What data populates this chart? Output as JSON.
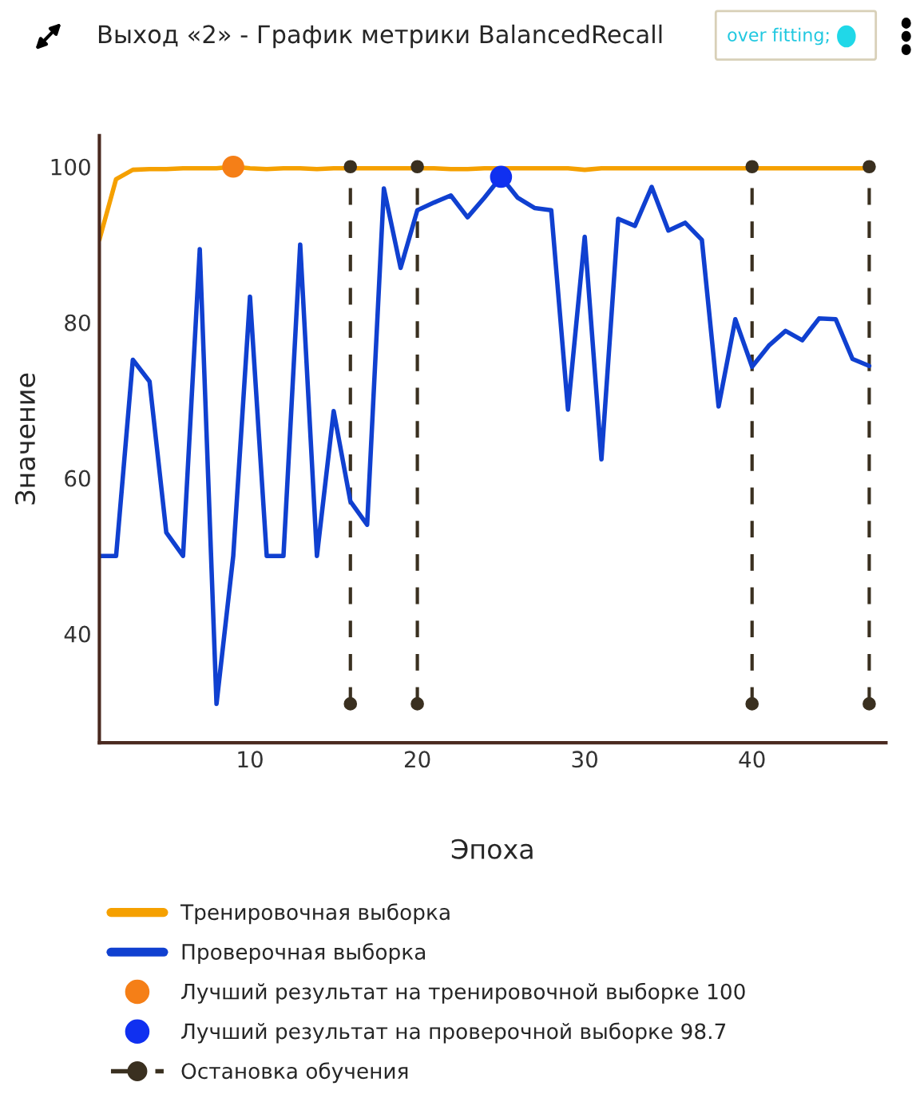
{
  "chart_data": {
    "type": "line",
    "title": "Выход «2» - График метрики BalancedRecall",
    "xlabel": "Эпоха",
    "ylabel": "Значение",
    "annotations": [
      "over fitting;"
    ],
    "xlim": [
      1,
      48
    ],
    "ylim": [
      26,
      104
    ],
    "xticks": [
      10,
      20,
      30,
      40
    ],
    "yticks": [
      40,
      60,
      80,
      100
    ],
    "grid": false,
    "legend": "bottom",
    "series": [
      {
        "name": "Тренировочная выборка",
        "color": "#f5a000",
        "x": [
          1,
          2,
          3,
          4,
          5,
          6,
          7,
          8,
          9,
          10,
          11,
          12,
          13,
          14,
          15,
          16,
          17,
          18,
          19,
          20,
          21,
          22,
          23,
          24,
          25,
          26,
          27,
          28,
          29,
          30,
          31,
          32,
          33,
          34,
          35,
          36,
          37,
          38,
          39,
          40,
          41,
          42,
          43,
          44,
          45,
          46,
          47
        ],
        "values": [
          90.6,
          98.4,
          99.6,
          99.7,
          99.7,
          99.8,
          99.8,
          99.8,
          100,
          99.8,
          99.7,
          99.8,
          99.8,
          99.7,
          99.8,
          99.8,
          99.8,
          99.8,
          99.8,
          99.8,
          99.8,
          99.7,
          99.7,
          99.8,
          99.8,
          99.8,
          99.8,
          99.8,
          99.8,
          99.6,
          99.8,
          99.8,
          99.8,
          99.8,
          99.8,
          99.8,
          99.8,
          99.8,
          99.8,
          99.8,
          99.8,
          99.8,
          99.8,
          99.8,
          99.8,
          99.8,
          99.8
        ]
      },
      {
        "name": "Проверочная выборка",
        "color": "#1040d0",
        "x": [
          1,
          2,
          3,
          4,
          5,
          6,
          7,
          8,
          9,
          10,
          11,
          12,
          13,
          14,
          15,
          16,
          17,
          18,
          19,
          20,
          21,
          22,
          23,
          24,
          25,
          26,
          27,
          28,
          29,
          30,
          31,
          32,
          33,
          34,
          35,
          36,
          37,
          38,
          39,
          40,
          41,
          42,
          43,
          44,
          45,
          46,
          47
        ],
        "values": [
          50,
          50,
          75.2,
          72.4,
          53,
          50,
          89.4,
          31,
          50,
          83.3,
          50,
          50,
          90,
          50,
          68.6,
          57,
          54,
          97.2,
          87,
          94.4,
          95.4,
          96.3,
          93.5,
          96,
          98.7,
          96,
          94.7,
          94.4,
          68.8,
          91,
          62.4,
          93.3,
          92.4,
          97.4,
          91.8,
          92.8,
          90.6,
          69.2,
          80.4,
          74.3,
          77,
          78.9,
          77.7,
          80.5,
          80.4,
          75.3,
          74.4
        ]
      },
      {
        "name": "Лучший результат на тренировочной выборке 100",
        "type": "scatter",
        "marker": "circle",
        "color": "#f57f17",
        "x": [
          9
        ],
        "values": [
          100
        ]
      },
      {
        "name": "Лучший результат на проверочной выборке 98.7",
        "type": "scatter",
        "marker": "circle",
        "color": "#1030f0",
        "x": [
          25
        ],
        "values": [
          98.7
        ]
      },
      {
        "type": "scatter",
        "marker": "circle",
        "color": "#3a3020",
        "x": [
          16,
          16,
          20,
          20,
          40,
          40,
          47,
          47
        ],
        "values": [
          31,
          100,
          31,
          100,
          31,
          100,
          31,
          100
        ]
      }
    ],
    "ref_lines": [
      {
        "axis": "x",
        "value": 16,
        "label": "Остановка обучения",
        "color": "#3a3020",
        "line_style": "dashed"
      },
      {
        "axis": "x",
        "value": 20,
        "label": null,
        "color": "#3a3020",
        "line_style": "dashed"
      },
      {
        "axis": "x",
        "value": 40,
        "label": null,
        "color": "#3a3020",
        "line_style": "dashed"
      },
      {
        "axis": "x",
        "value": 47,
        "label": null,
        "color": "#3a3020",
        "line_style": "dashed"
      }
    ]
  }
}
